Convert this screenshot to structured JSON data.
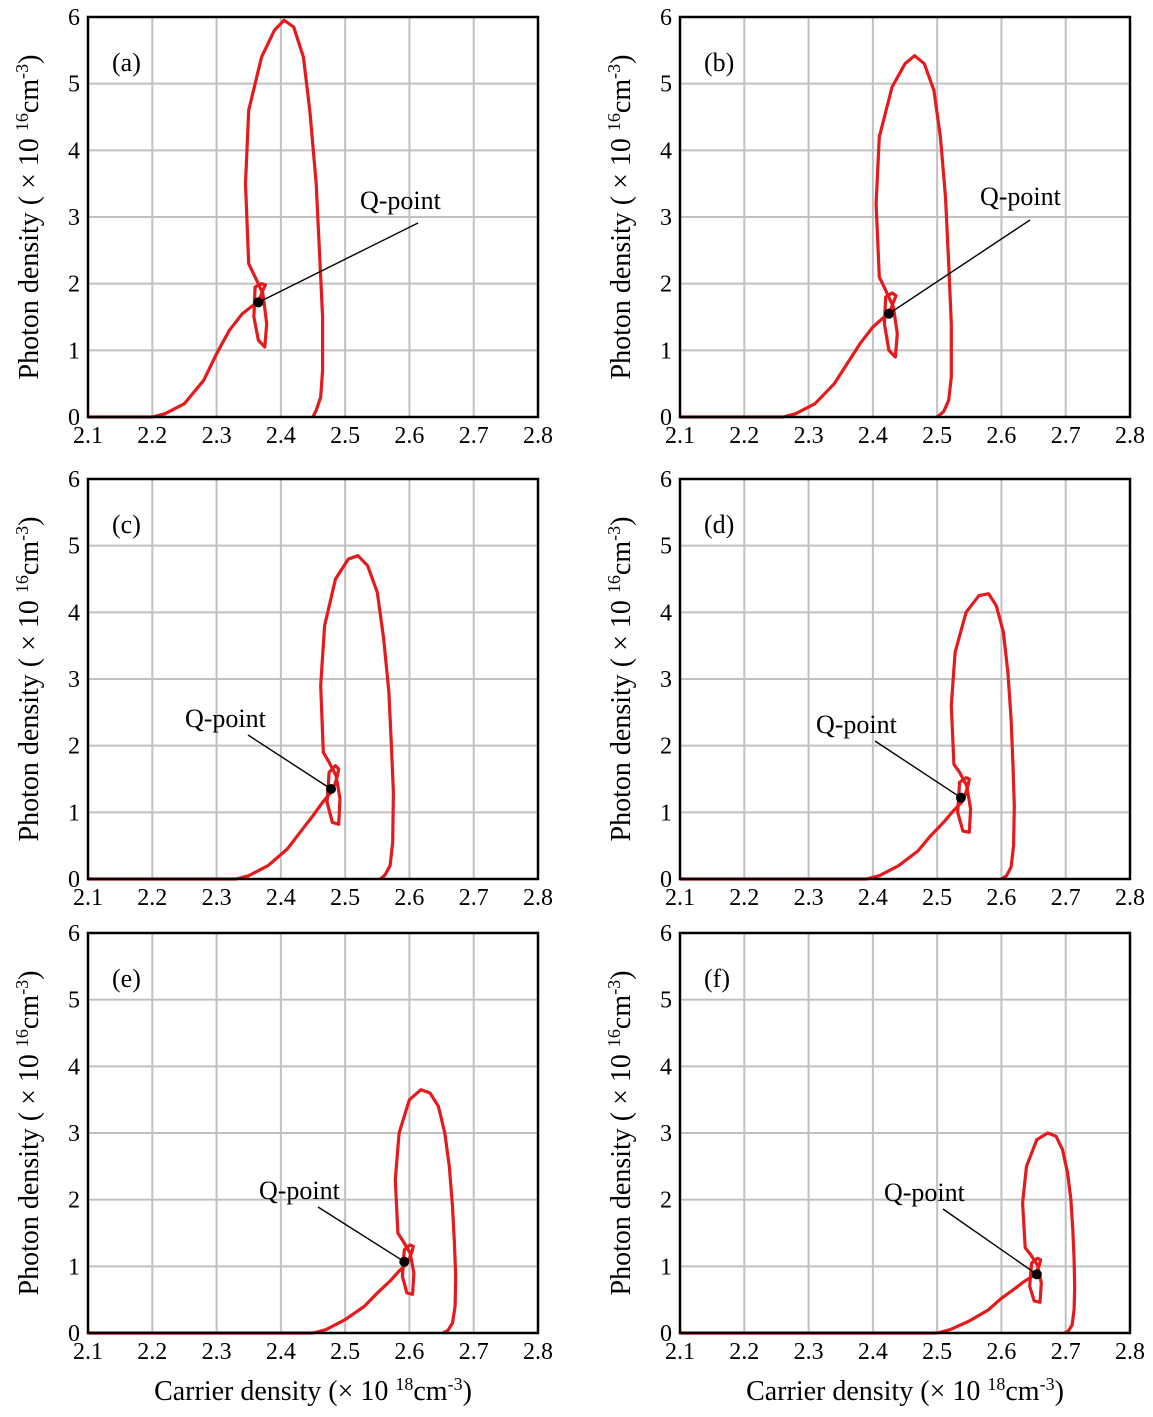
{
  "chart_data": [
    {
      "type": "line",
      "panel_label": "(a)",
      "annotation": "Q-point",
      "q_point": {
        "x": 2.365,
        "y": 1.72
      },
      "series": [
        {
          "x": [
            2.1,
            2.2,
            2.22,
            2.25,
            2.28,
            2.3,
            2.32,
            2.34,
            2.36,
            2.368,
            2.372,
            2.376,
            2.37,
            2.36,
            2.358,
            2.365,
            2.375,
            2.378,
            2.372,
            2.36,
            2.35,
            2.345,
            2.35,
            2.37,
            2.39,
            2.405,
            2.42,
            2.435,
            2.445,
            2.455,
            2.46,
            2.465,
            2.465,
            2.462,
            2.455,
            2.45
          ],
          "y": [
            0,
            0,
            0.05,
            0.2,
            0.55,
            0.95,
            1.3,
            1.55,
            1.7,
            1.8,
            1.9,
            1.98,
            2.0,
            1.95,
            1.5,
            1.15,
            1.05,
            1.4,
            1.85,
            2.1,
            2.3,
            3.5,
            4.6,
            5.4,
            5.8,
            5.95,
            5.85,
            5.4,
            4.6,
            3.5,
            2.5,
            1.5,
            0.7,
            0.3,
            0.1,
            0
          ]
        }
      ]
    },
    {
      "type": "line",
      "panel_label": "(b)",
      "annotation": "Q-point",
      "q_point": {
        "x": 2.425,
        "y": 1.55
      },
      "series": [
        {
          "x": [
            2.1,
            2.26,
            2.28,
            2.31,
            2.34,
            2.36,
            2.38,
            2.4,
            2.42,
            2.428,
            2.432,
            2.436,
            2.43,
            2.42,
            2.418,
            2.425,
            2.435,
            2.438,
            2.432,
            2.42,
            2.41,
            2.405,
            2.41,
            2.43,
            2.45,
            2.465,
            2.48,
            2.495,
            2.505,
            2.513,
            2.518,
            2.522,
            2.522,
            2.518,
            2.51,
            2.5
          ],
          "y": [
            0,
            0,
            0.05,
            0.2,
            0.5,
            0.8,
            1.1,
            1.35,
            1.52,
            1.62,
            1.72,
            1.82,
            1.86,
            1.8,
            1.4,
            1.0,
            0.9,
            1.25,
            1.65,
            1.9,
            2.1,
            3.2,
            4.2,
            4.95,
            5.3,
            5.42,
            5.3,
            4.9,
            4.2,
            3.3,
            2.3,
            1.4,
            0.6,
            0.25,
            0.08,
            0
          ]
        }
      ]
    },
    {
      "type": "line",
      "panel_label": "(c)",
      "annotation": "Q-point",
      "q_point": {
        "x": 2.478,
        "y": 1.35
      },
      "series": [
        {
          "x": [
            2.1,
            2.33,
            2.35,
            2.38,
            2.41,
            2.43,
            2.45,
            2.465,
            2.478,
            2.484,
            2.488,
            2.49,
            2.485,
            2.475,
            2.472,
            2.48,
            2.49,
            2.492,
            2.486,
            2.475,
            2.466,
            2.462,
            2.468,
            2.485,
            2.505,
            2.52,
            2.535,
            2.55,
            2.56,
            2.568,
            2.572,
            2.575,
            2.574,
            2.57,
            2.562,
            2.555
          ],
          "y": [
            0,
            0,
            0.05,
            0.2,
            0.45,
            0.7,
            0.95,
            1.15,
            1.3,
            1.42,
            1.55,
            1.65,
            1.7,
            1.6,
            1.15,
            0.85,
            0.82,
            1.2,
            1.55,
            1.75,
            1.9,
            2.9,
            3.8,
            4.5,
            4.8,
            4.85,
            4.7,
            4.3,
            3.6,
            2.8,
            2.0,
            1.3,
            0.55,
            0.2,
            0.06,
            0
          ]
        }
      ]
    },
    {
      "type": "line",
      "panel_label": "(d)",
      "annotation": "Q-point",
      "q_point": {
        "x": 2.537,
        "y": 1.22
      },
      "series": [
        {
          "x": [
            2.1,
            2.39,
            2.41,
            2.44,
            2.47,
            2.49,
            2.51,
            2.525,
            2.538,
            2.544,
            2.548,
            2.55,
            2.545,
            2.535,
            2.532,
            2.54,
            2.55,
            2.552,
            2.546,
            2.535,
            2.526,
            2.522,
            2.528,
            2.545,
            2.565,
            2.58,
            2.592,
            2.603,
            2.61,
            2.615,
            2.618,
            2.62,
            2.619,
            2.615,
            2.608,
            2.6
          ],
          "y": [
            0,
            0,
            0.05,
            0.2,
            0.42,
            0.65,
            0.85,
            1.02,
            1.15,
            1.27,
            1.4,
            1.5,
            1.52,
            1.45,
            1.0,
            0.72,
            0.7,
            1.05,
            1.4,
            1.6,
            1.72,
            2.6,
            3.4,
            4.0,
            4.25,
            4.28,
            4.1,
            3.7,
            3.1,
            2.4,
            1.7,
            1.1,
            0.5,
            0.18,
            0.05,
            0
          ]
        }
      ]
    },
    {
      "type": "line",
      "panel_label": "(e)",
      "annotation": "Q-point",
      "q_point": {
        "x": 2.592,
        "y": 1.07
      },
      "series": [
        {
          "x": [
            2.1,
            2.45,
            2.47,
            2.5,
            2.53,
            2.55,
            2.57,
            2.583,
            2.594,
            2.6,
            2.604,
            2.606,
            2.601,
            2.592,
            2.589,
            2.596,
            2.605,
            2.607,
            2.601,
            2.59,
            2.582,
            2.578,
            2.584,
            2.6,
            2.618,
            2.632,
            2.645,
            2.655,
            2.662,
            2.667,
            2.67,
            2.672,
            2.671,
            2.667,
            2.66,
            2.652
          ],
          "y": [
            0,
            0,
            0.05,
            0.2,
            0.4,
            0.6,
            0.78,
            0.92,
            1.02,
            1.12,
            1.22,
            1.3,
            1.32,
            1.25,
            0.85,
            0.6,
            0.58,
            0.9,
            1.2,
            1.38,
            1.5,
            2.3,
            3.0,
            3.5,
            3.65,
            3.6,
            3.4,
            3.0,
            2.5,
            1.9,
            1.35,
            0.85,
            0.4,
            0.15,
            0.04,
            0
          ]
        }
      ]
    },
    {
      "type": "line",
      "panel_label": "(f)",
      "annotation": "Q-point",
      "q_point": {
        "x": 2.655,
        "y": 0.88
      },
      "series": [
        {
          "x": [
            2.1,
            2.5,
            2.52,
            2.55,
            2.58,
            2.6,
            2.62,
            2.635,
            2.648,
            2.655,
            2.659,
            2.661,
            2.656,
            2.647,
            2.644,
            2.651,
            2.66,
            2.662,
            2.656,
            2.645,
            2.637,
            2.633,
            2.639,
            2.655,
            2.672,
            2.685,
            2.695,
            2.703,
            2.708,
            2.711,
            2.713,
            2.714,
            2.713,
            2.71,
            2.704,
            2.698
          ],
          "y": [
            0,
            0,
            0.05,
            0.18,
            0.35,
            0.52,
            0.66,
            0.77,
            0.85,
            0.93,
            1.02,
            1.1,
            1.12,
            1.05,
            0.7,
            0.48,
            0.46,
            0.75,
            1.02,
            1.18,
            1.28,
            1.95,
            2.5,
            2.9,
            3.0,
            2.95,
            2.75,
            2.4,
            2.0,
            1.55,
            1.1,
            0.7,
            0.35,
            0.12,
            0.03,
            0
          ]
        }
      ]
    }
  ],
  "axes": {
    "xlim": [
      2.1,
      2.8
    ],
    "ylim": [
      0,
      6
    ],
    "xticks": [
      "2.1",
      "2.2",
      "2.3",
      "2.4",
      "2.5",
      "2.6",
      "2.7",
      "2.8"
    ],
    "yticks": [
      "0",
      "1",
      "2",
      "3",
      "4",
      "5",
      "6"
    ],
    "grid": true,
    "line_color": "#e41a1c",
    "ylabel": {
      "main": "Photon density ( ",
      "times": "× 10 ",
      "exp1": "16",
      "unit": "cm",
      "exp2": "-3",
      "close": ")"
    },
    "xlabel": {
      "main": "Carrier density (",
      "times": "× 10 ",
      "exp1": "18",
      "unit": "cm",
      "exp2": "-3",
      "close": ")"
    }
  }
}
